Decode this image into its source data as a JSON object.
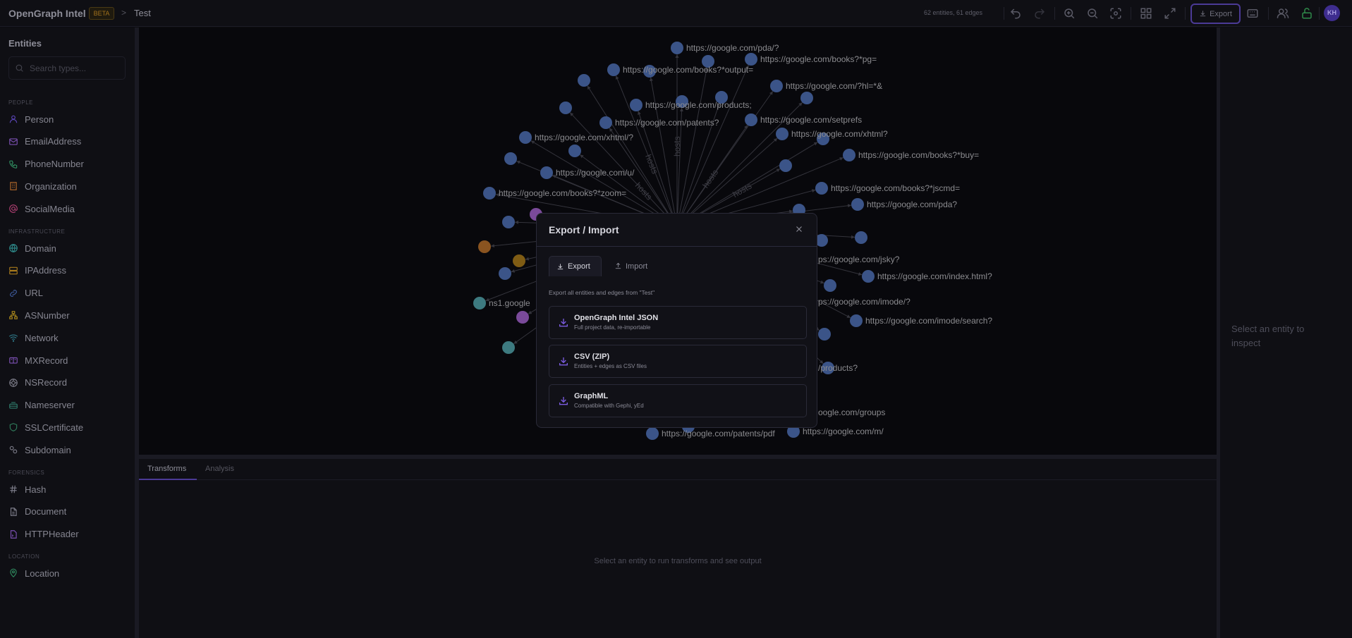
{
  "header": {
    "app_title": "OpenGraph Intel",
    "badge": "BETA",
    "breadcrumb_separator": ">",
    "project": "Test",
    "stats": "62 entities, 61 edges",
    "export_label": "Export",
    "avatar_initials": "KH",
    "icons": [
      "undo-icon",
      "redo-icon",
      "zoom-in-icon",
      "zoom-out-icon",
      "fit-view-icon",
      "layout-grid-icon",
      "fullscreen-icon",
      "download-icon",
      "keyboard-icon",
      "users-icon",
      "unlock-icon"
    ]
  },
  "sidebar": {
    "title": "Entities",
    "search_placeholder": "Search types...",
    "sections": [
      {
        "label": "PEOPLE",
        "items": [
          {
            "label": "Person",
            "color": "#5b45b8"
          },
          {
            "label": "EmailAddress",
            "color": "#7a4fb0"
          },
          {
            "label": "PhoneNumber",
            "color": "#2f8a5e"
          },
          {
            "label": "Organization",
            "color": "#b0682a"
          },
          {
            "label": "SocialMedia",
            "color": "#b03f72"
          }
        ]
      },
      {
        "label": "INFRASTRUCTURE",
        "items": [
          {
            "label": "Domain",
            "color": "#2f8a8a"
          },
          {
            "label": "IPAddress",
            "color": "#a87a1c"
          },
          {
            "label": "URL",
            "color": "#3d5a9a"
          },
          {
            "label": "ASNumber",
            "color": "#a8861c"
          },
          {
            "label": "Network",
            "color": "#2f7a8a"
          },
          {
            "label": "MXRecord",
            "color": "#7a4fb0"
          },
          {
            "label": "NSRecord",
            "color": "#7a7a86"
          },
          {
            "label": "Nameserver",
            "color": "#2f7a6a"
          },
          {
            "label": "SSLCertificate",
            "color": "#2f7a5a"
          },
          {
            "label": "Subdomain",
            "color": "#7a7a86"
          }
        ]
      },
      {
        "label": "FORENSICS",
        "items": [
          {
            "label": "Hash",
            "color": "#7a7a86"
          },
          {
            "label": "Document",
            "color": "#7a7a86"
          },
          {
            "label": "HTTPHeader",
            "color": "#7a4fb0"
          }
        ]
      },
      {
        "label": "LOCATION",
        "items": [
          {
            "label": "Location",
            "color": "#2f8a5e"
          }
        ]
      }
    ]
  },
  "graph": {
    "edge_label": "hosts",
    "colors": {
      "url": "#3b5488",
      "domain": "#7a4a9a",
      "organization": "#8a5420",
      "ip": "#7f5c14",
      "nameserver": "#3d7a80",
      "edge": "#34343c",
      "label": "#8b8b8f"
    },
    "nodes": [
      {
        "type": "url",
        "label": "https://google.com/pda/?"
      },
      {
        "type": "url",
        "label": ""
      },
      {
        "type": "url",
        "label": "https://google.com/books?*pg="
      },
      {
        "type": "url",
        "label": "https://google.com/books?*output="
      },
      {
        "type": "url",
        "label": ""
      },
      {
        "type": "url",
        "label": ""
      },
      {
        "type": "url",
        "label": "https://google.com/?hl=*&"
      },
      {
        "type": "url",
        "label": ""
      },
      {
        "type": "url",
        "label": "https://google.com/products;"
      },
      {
        "type": "url",
        "label": ""
      },
      {
        "type": "url",
        "label": ""
      },
      {
        "type": "url",
        "label": ""
      },
      {
        "type": "url",
        "label": "https://google.com/patents?"
      },
      {
        "type": "url",
        "label": "https://google.com/setprefs"
      },
      {
        "type": "url",
        "label": "https://google.com/xhtml/?"
      },
      {
        "type": "url",
        "label": "https://google.com/xhtml?"
      },
      {
        "type": "url",
        "label": ""
      },
      {
        "type": "url",
        "label": ""
      },
      {
        "type": "url",
        "label": ""
      },
      {
        "type": "url",
        "label": "https://google.com/books?*buy="
      },
      {
        "type": "url",
        "label": "https://google.com/u/"
      },
      {
        "type": "url",
        "label": ""
      },
      {
        "type": "url",
        "label": "https://google.com/books?*zoom="
      },
      {
        "type": "url",
        "label": "https://google.com/books?*jscmd="
      },
      {
        "type": "url",
        "label": "https://google.com/pda?"
      },
      {
        "type": "domain",
        "label": ""
      },
      {
        "type": "url",
        "label": ""
      },
      {
        "type": "url",
        "label": ""
      },
      {
        "type": "organization",
        "label": ""
      },
      {
        "type": "ip",
        "label": ""
      },
      {
        "type": "url",
        "label": ""
      },
      {
        "type": "nameserver",
        "label": "ns1.google"
      },
      {
        "type": "domain",
        "label": ""
      },
      {
        "type": "nameserver",
        "label": ""
      },
      {
        "type": "url",
        "label": ""
      },
      {
        "type": "url",
        "label": ""
      },
      {
        "type": "url",
        "label": "https://google.com/index.html?"
      },
      {
        "type": "url",
        "label": ""
      },
      {
        "type": "url",
        "label": "https://google.com/imode/search?"
      },
      {
        "type": "url",
        "label": ""
      },
      {
        "type": "url",
        "label": ""
      },
      {
        "type": "url",
        "label": "https://google.com/patents/pdf"
      },
      {
        "type": "url",
        "label": ""
      },
      {
        "type": "url",
        "label": "https://google.com/m/"
      }
    ],
    "partial_labels": [
      "ps://google.com/jsky?",
      "ps://google.com/imode/?",
      "/products?",
      "oogle.com/groups"
    ]
  },
  "right_panel": {
    "empty_text": "Select an entity to inspect"
  },
  "bottom_panel": {
    "tabs": [
      "Transforms",
      "Analysis"
    ],
    "active_tab": "Transforms",
    "empty_text": "Select an entity to run transforms and see output"
  },
  "modal": {
    "title": "Export / Import",
    "tabs": {
      "export": "Export",
      "import": "Import"
    },
    "active_tab": "Export",
    "description": "Export all entities and edges from \"Test\"",
    "options": [
      {
        "title": "OpenGraph Intel JSON",
        "subtitle": "Full project data, re-importable"
      },
      {
        "title": "CSV (ZIP)",
        "subtitle": "Entities + edges as CSV files"
      },
      {
        "title": "GraphML",
        "subtitle": "Compatible with Gephi, yEd"
      }
    ],
    "accent": "#7b5ce0"
  }
}
